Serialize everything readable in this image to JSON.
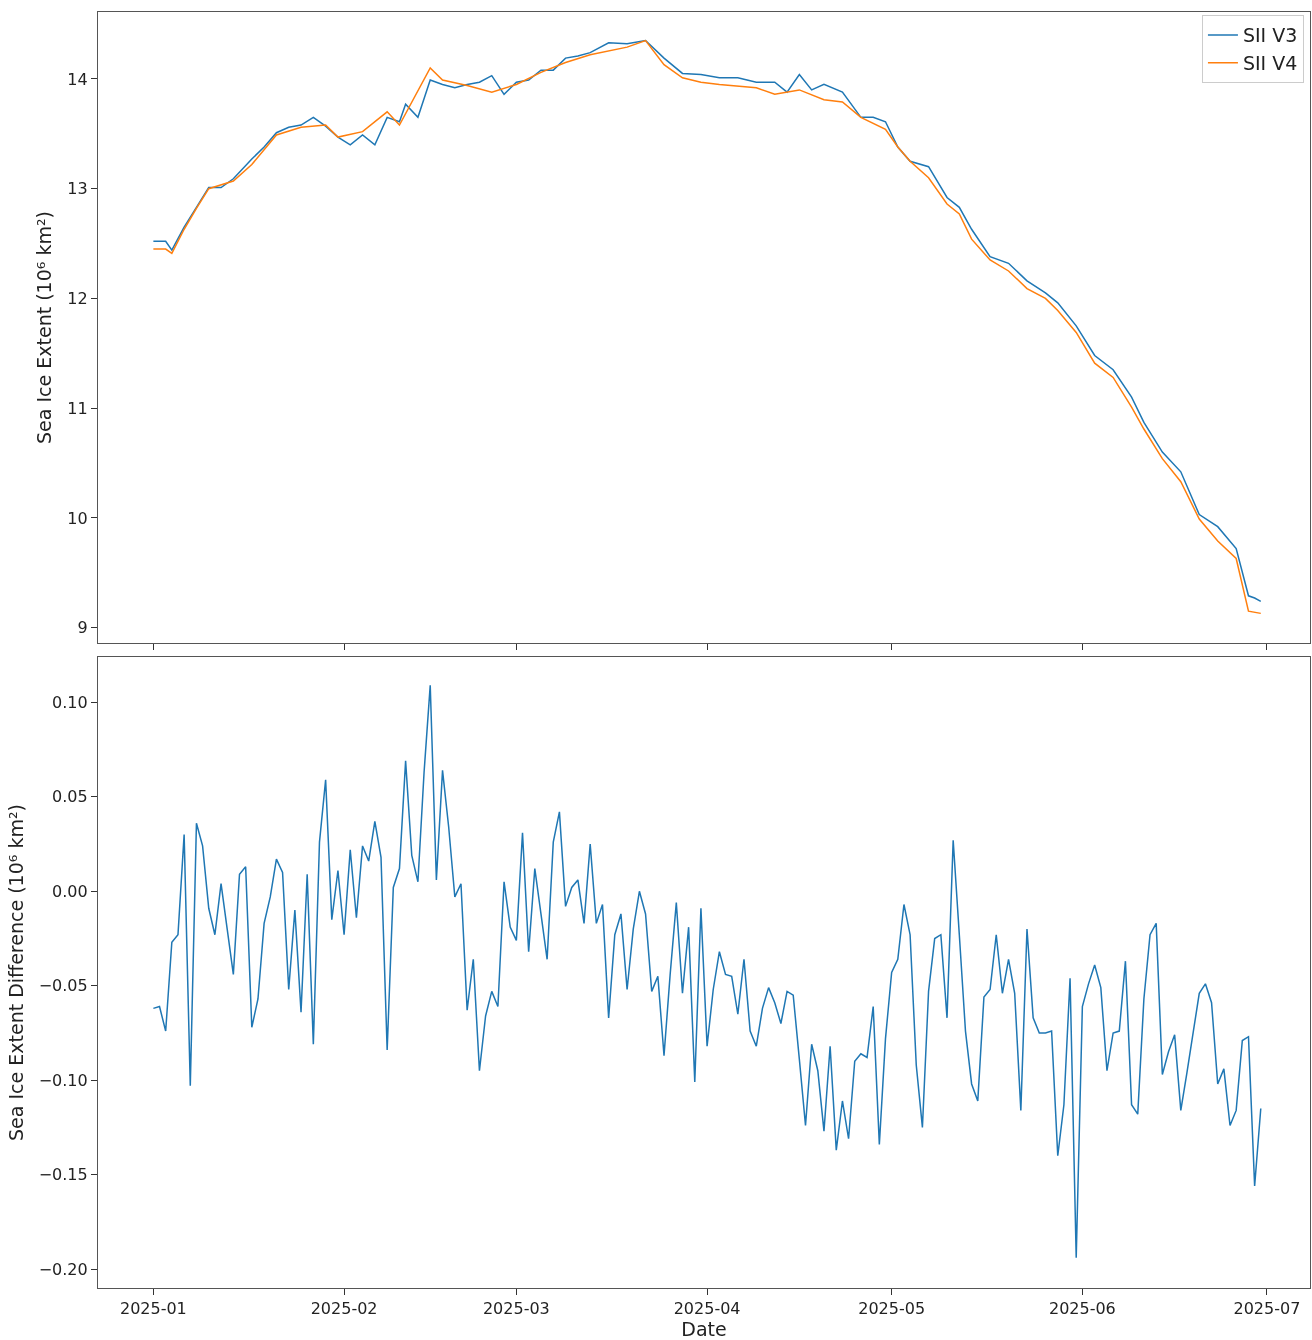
{
  "chart_data": [
    {
      "type": "line",
      "ylabel": "Sea Ice Extent (10⁶ km²)",
      "xlim": [
        "2024-12-23",
        "2025-07-08"
      ],
      "ylim": [
        8.86,
        14.61
      ],
      "xticks": [
        {
          "value": "2025-01-01",
          "label": null
        },
        {
          "value": "2025-02-01",
          "label": null
        },
        {
          "value": "2025-03-01",
          "label": null
        },
        {
          "value": "2025-04-01",
          "label": null
        },
        {
          "value": "2025-05-01",
          "label": null
        },
        {
          "value": "2025-06-01",
          "label": null
        },
        {
          "value": "2025-07-01",
          "label": null
        }
      ],
      "yticks": [
        9,
        10,
        11,
        12,
        13,
        14
      ],
      "tick_labels": "y",
      "legend": "top right",
      "series": [
        {
          "name": "SII V3",
          "color": "#1f77b4",
          "x": [
            "2025-01-01",
            "2025-01-03",
            "2025-01-04",
            "2025-01-06",
            "2025-01-08",
            "2025-01-10",
            "2025-01-12",
            "2025-01-14",
            "2025-01-17",
            "2025-01-19",
            "2025-01-21",
            "2025-01-23",
            "2025-01-25",
            "2025-01-27",
            "2025-01-29",
            "2025-01-31",
            "2025-02-02",
            "2025-02-04",
            "2025-02-06",
            "2025-02-08",
            "2025-02-10",
            "2025-02-11",
            "2025-02-13",
            "2025-02-15",
            "2025-02-17",
            "2025-02-19",
            "2025-02-21",
            "2025-02-23",
            "2025-02-25",
            "2025-02-27",
            "2025-03-01",
            "2025-03-03",
            "2025-03-05",
            "2025-03-07",
            "2025-03-09",
            "2025-03-11",
            "2025-03-13",
            "2025-03-16",
            "2025-03-19",
            "2025-03-22",
            "2025-03-25",
            "2025-03-28",
            "2025-03-31",
            "2025-04-03",
            "2025-04-06",
            "2025-04-09",
            "2025-04-12",
            "2025-04-14",
            "2025-04-16",
            "2025-04-18",
            "2025-04-20",
            "2025-04-23",
            "2025-04-26",
            "2025-04-28",
            "2025-04-30",
            "2025-05-02",
            "2025-05-04",
            "2025-05-07",
            "2025-05-10",
            "2025-05-12",
            "2025-05-14",
            "2025-05-17",
            "2025-05-20",
            "2025-05-23",
            "2025-05-26",
            "2025-05-28",
            "2025-05-31",
            "2025-06-03",
            "2025-06-06",
            "2025-06-09",
            "2025-06-11",
            "2025-06-14",
            "2025-06-17",
            "2025-06-20",
            "2025-06-23",
            "2025-06-26",
            "2025-06-28",
            "2025-06-29",
            "2025-06-30"
          ],
          "values": [
            12.52,
            12.52,
            12.44,
            12.65,
            12.83,
            13.01,
            13.01,
            13.09,
            13.27,
            13.38,
            13.51,
            13.56,
            13.58,
            13.65,
            13.57,
            13.47,
            13.4,
            13.49,
            13.4,
            13.65,
            13.61,
            13.77,
            13.65,
            13.99,
            13.95,
            13.92,
            13.95,
            13.97,
            14.03,
            13.86,
            13.97,
            13.99,
            14.08,
            14.08,
            14.19,
            14.21,
            14.24,
            14.33,
            14.32,
            14.35,
            14.19,
            14.05,
            14.04,
            14.01,
            14.01,
            13.97,
            13.97,
            13.88,
            14.04,
            13.9,
            13.95,
            13.88,
            13.65,
            13.65,
            13.61,
            13.38,
            13.25,
            13.2,
            12.92,
            12.83,
            12.63,
            12.38,
            12.32,
            12.16,
            12.05,
            11.96,
            11.75,
            11.48,
            11.35,
            11.1,
            10.87,
            10.6,
            10.42,
            10.03,
            9.92,
            9.72,
            9.29,
            9.27,
            9.24
          ]
        },
        {
          "name": "SII V4",
          "color": "#ff7f0e",
          "x": [
            "2025-01-01",
            "2025-01-03",
            "2025-01-04",
            "2025-01-06",
            "2025-01-08",
            "2025-01-10",
            "2025-01-14",
            "2025-01-17",
            "2025-01-21",
            "2025-01-25",
            "2025-01-29",
            "2025-01-31",
            "2025-02-04",
            "2025-02-08",
            "2025-02-10",
            "2025-02-15",
            "2025-02-17",
            "2025-02-21",
            "2025-02-25",
            "2025-03-01",
            "2025-03-05",
            "2025-03-09",
            "2025-03-13",
            "2025-03-19",
            "2025-03-22",
            "2025-03-25",
            "2025-03-28",
            "2025-03-31",
            "2025-04-03",
            "2025-04-09",
            "2025-04-12",
            "2025-04-16",
            "2025-04-20",
            "2025-04-23",
            "2025-04-26",
            "2025-04-30",
            "2025-05-02",
            "2025-05-04",
            "2025-05-07",
            "2025-05-10",
            "2025-05-12",
            "2025-05-14",
            "2025-05-17",
            "2025-05-20",
            "2025-05-23",
            "2025-05-26",
            "2025-05-28",
            "2025-05-31",
            "2025-06-03",
            "2025-06-06",
            "2025-06-09",
            "2025-06-11",
            "2025-06-14",
            "2025-06-17",
            "2025-06-20",
            "2025-06-23",
            "2025-06-26",
            "2025-06-28",
            "2025-06-30"
          ],
          "values": [
            12.45,
            12.45,
            12.41,
            12.63,
            12.82,
            13.0,
            13.07,
            13.22,
            13.49,
            13.56,
            13.58,
            13.47,
            13.52,
            13.7,
            13.58,
            14.1,
            13.99,
            13.94,
            13.88,
            13.95,
            14.06,
            14.15,
            14.22,
            14.29,
            14.35,
            14.13,
            14.01,
            13.97,
            13.95,
            13.92,
            13.86,
            13.9,
            13.81,
            13.79,
            13.65,
            13.54,
            13.38,
            13.25,
            13.1,
            12.86,
            12.77,
            12.54,
            12.35,
            12.25,
            12.09,
            12.0,
            11.89,
            11.69,
            11.41,
            11.28,
            11.01,
            10.81,
            10.54,
            10.33,
            9.99,
            9.79,
            9.63,
            9.15,
            9.13
          ]
        }
      ]
    },
    {
      "type": "line",
      "xlabel": "Date",
      "ylabel": "Sea Ice Extent Difference (10⁶ km²)",
      "xlim": [
        "2024-12-23",
        "2025-07-08"
      ],
      "ylim": [
        -0.21,
        0.124
      ],
      "xticks": [
        {
          "value": "2025-01-01",
          "label": "2025-01"
        },
        {
          "value": "2025-02-01",
          "label": "2025-02"
        },
        {
          "value": "2025-03-01",
          "label": "2025-03"
        },
        {
          "value": "2025-04-01",
          "label": "2025-04"
        },
        {
          "value": "2025-05-01",
          "label": "2025-05"
        },
        {
          "value": "2025-06-01",
          "label": "2025-06"
        },
        {
          "value": "2025-07-01",
          "label": "2025-07"
        }
      ],
      "yticks": [
        {
          "value": -0.2,
          "label": "−0.20"
        },
        {
          "value": -0.15,
          "label": "−0.15"
        },
        {
          "value": -0.1,
          "label": "−0.10"
        },
        {
          "value": -0.05,
          "label": "−0.05"
        },
        {
          "value": 0,
          "label": "0.00"
        },
        {
          "value": 0.05,
          "label": "0.05"
        },
        {
          "value": 0.1,
          "label": "0.10"
        }
      ],
      "series": [
        {
          "color": "#1f77b4",
          "x": [
            "2025-01-01",
            "2025-01-02",
            "2025-01-03",
            "2025-01-04",
            "2025-01-05",
            "2025-01-06",
            "2025-01-07",
            "2025-01-08",
            "2025-01-09",
            "2025-01-10",
            "2025-01-11",
            "2025-01-12",
            "2025-01-13",
            "2025-01-14",
            "2025-01-15",
            "2025-01-16",
            "2025-01-17",
            "2025-01-18",
            "2025-01-19",
            "2025-01-20",
            "2025-01-21",
            "2025-01-22",
            "2025-01-23",
            "2025-01-24",
            "2025-01-25",
            "2025-01-26",
            "2025-01-27",
            "2025-01-28",
            "2025-01-29",
            "2025-01-30",
            "2025-01-31",
            "2025-02-01",
            "2025-02-02",
            "2025-02-03",
            "2025-02-04",
            "2025-02-05",
            "2025-02-06",
            "2025-02-07",
            "2025-02-08",
            "2025-02-09",
            "2025-02-10",
            "2025-02-11",
            "2025-02-12",
            "2025-02-13",
            "2025-02-14",
            "2025-02-15",
            "2025-02-16",
            "2025-02-17",
            "2025-02-18",
            "2025-02-19",
            "2025-02-20",
            "2025-02-21",
            "2025-02-22",
            "2025-02-23",
            "2025-02-24",
            "2025-02-25",
            "2025-02-26",
            "2025-02-27",
            "2025-02-28",
            "2025-03-01",
            "2025-03-02",
            "2025-03-03",
            "2025-03-04",
            "2025-03-05",
            "2025-03-06",
            "2025-03-07",
            "2025-03-08",
            "2025-03-09",
            "2025-03-10",
            "2025-03-11",
            "2025-03-12",
            "2025-03-13",
            "2025-03-14",
            "2025-03-15",
            "2025-03-16",
            "2025-03-17",
            "2025-03-18",
            "2025-03-19",
            "2025-03-20",
            "2025-03-21",
            "2025-03-22",
            "2025-03-23",
            "2025-03-24",
            "2025-03-25",
            "2025-03-26",
            "2025-03-27",
            "2025-03-28",
            "2025-03-29",
            "2025-03-30",
            "2025-03-31",
            "2025-04-01",
            "2025-04-02",
            "2025-04-03",
            "2025-04-04",
            "2025-04-05",
            "2025-04-06",
            "2025-04-07",
            "2025-04-08",
            "2025-04-09",
            "2025-04-10",
            "2025-04-11",
            "2025-04-12",
            "2025-04-13",
            "2025-04-14",
            "2025-04-15",
            "2025-04-16",
            "2025-04-17",
            "2025-04-18",
            "2025-04-19",
            "2025-04-20",
            "2025-04-21",
            "2025-04-22",
            "2025-04-23",
            "2025-04-24",
            "2025-04-25",
            "2025-04-26",
            "2025-04-27",
            "2025-04-28",
            "2025-04-29",
            "2025-04-30",
            "2025-05-01",
            "2025-05-02",
            "2025-05-03",
            "2025-05-04",
            "2025-05-05",
            "2025-05-06",
            "2025-05-07",
            "2025-05-08",
            "2025-05-09",
            "2025-05-10",
            "2025-05-11",
            "2025-05-12",
            "2025-05-13",
            "2025-05-14",
            "2025-05-15",
            "2025-05-16",
            "2025-05-17",
            "2025-05-18",
            "2025-05-19",
            "2025-05-20",
            "2025-05-21",
            "2025-05-22",
            "2025-05-23",
            "2025-05-24",
            "2025-05-25",
            "2025-05-26",
            "2025-05-27",
            "2025-05-28",
            "2025-05-29",
            "2025-05-30",
            "2025-05-31",
            "2025-06-01",
            "2025-06-02",
            "2025-06-03",
            "2025-06-04",
            "2025-06-05",
            "2025-06-06",
            "2025-06-07",
            "2025-06-08",
            "2025-06-09",
            "2025-06-10",
            "2025-06-11",
            "2025-06-12",
            "2025-06-13",
            "2025-06-14",
            "2025-06-15",
            "2025-06-16",
            "2025-06-17",
            "2025-06-18",
            "2025-06-19",
            "2025-06-20",
            "2025-06-21",
            "2025-06-22",
            "2025-06-23",
            "2025-06-24",
            "2025-06-25",
            "2025-06-26",
            "2025-06-27",
            "2025-06-28",
            "2025-06-29",
            "2025-06-30"
          ],
          "values": [
            -0.062,
            -0.061,
            -0.074,
            -0.027,
            -0.023,
            0.03,
            -0.103,
            0.036,
            0.024,
            -0.009,
            -0.023,
            0.004,
            -0.02,
            -0.044,
            0.009,
            0.013,
            -0.072,
            -0.057,
            -0.017,
            -0.003,
            0.017,
            0.01,
            -0.052,
            -0.01,
            -0.064,
            0.009,
            -0.081,
            0.026,
            0.059,
            -0.015,
            0.011,
            -0.023,
            0.022,
            -0.014,
            0.024,
            0.016,
            0.037,
            0.018,
            -0.084,
            0.002,
            0.012,
            0.069,
            0.019,
            0.005,
            0.063,
            0.109,
            0.006,
            0.064,
            0.034,
            -0.003,
            0.004,
            -0.063,
            -0.036,
            -0.095,
            -0.066,
            -0.053,
            -0.061,
            0.005,
            -0.019,
            -0.026,
            0.031,
            -0.032,
            0.012,
            -0.012,
            -0.036,
            0.026,
            0.042,
            -0.008,
            0.002,
            0.006,
            -0.017,
            0.025,
            -0.017,
            -0.007,
            -0.067,
            -0.023,
            -0.012,
            -0.052,
            -0.02,
            0.0,
            -0.012,
            -0.053,
            -0.045,
            -0.087,
            -0.044,
            -0.006,
            -0.054,
            -0.019,
            -0.101,
            -0.009,
            -0.082,
            -0.052,
            -0.032,
            -0.044,
            -0.045,
            -0.065,
            -0.036,
            -0.074,
            -0.082,
            -0.062,
            -0.051,
            -0.059,
            -0.07,
            -0.053,
            -0.055,
            -0.089,
            -0.124,
            -0.081,
            -0.095,
            -0.127,
            -0.082,
            -0.137,
            -0.111,
            -0.131,
            -0.09,
            -0.086,
            -0.088,
            -0.061,
            -0.134,
            -0.078,
            -0.043,
            -0.036,
            -0.007,
            -0.023,
            -0.092,
            -0.125,
            -0.053,
            -0.025,
            -0.023,
            -0.067,
            0.027,
            -0.023,
            -0.074,
            -0.102,
            -0.111,
            -0.056,
            -0.052,
            -0.023,
            -0.054,
            -0.036,
            -0.054,
            -0.116,
            -0.02,
            -0.067,
            -0.075,
            -0.075,
            -0.074,
            -0.14,
            -0.113,
            -0.046,
            -0.194,
            -0.061,
            -0.049,
            -0.039,
            -0.051,
            -0.095,
            -0.075,
            -0.074,
            -0.037,
            -0.113,
            -0.118,
            -0.057,
            -0.023,
            -0.017,
            -0.097,
            -0.085,
            -0.076,
            -0.116,
            -0.096,
            -0.075,
            -0.054,
            -0.049,
            -0.059,
            -0.102,
            -0.094,
            -0.124,
            -0.116,
            -0.079,
            -0.077,
            -0.156,
            -0.115
          ]
        }
      ]
    }
  ]
}
